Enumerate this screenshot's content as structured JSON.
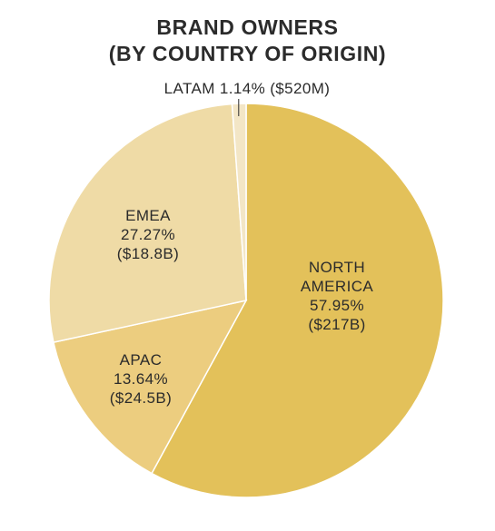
{
  "chart_data": {
    "type": "pie",
    "title": [
      "BRAND OWNERS",
      "(BY COUNTRY OF ORIGIN)"
    ],
    "slices": [
      {
        "name": "NORTH AMERICA",
        "value": 57.95,
        "label_lines": [
          "NORTH",
          "AMERICA",
          "57.95%",
          "($217B)"
        ],
        "color": "#e3c15a"
      },
      {
        "name": "APAC",
        "value": 13.64,
        "label_lines": [
          "APAC",
          "13.64%",
          "($24.5B)"
        ],
        "color": "#eccd7f"
      },
      {
        "name": "EMEA",
        "value": 27.27,
        "label_lines": [
          "EMEA",
          "27.27%",
          "($18.8B)"
        ],
        "color": "#efdba6"
      },
      {
        "name": "LATAM",
        "value": 1.14,
        "label_lines": [
          "LATAM 1.14% ($520M)"
        ],
        "color": "#f3e6c6"
      }
    ],
    "start": "12 o'clock",
    "direction": "clockwise",
    "legend": "none"
  }
}
